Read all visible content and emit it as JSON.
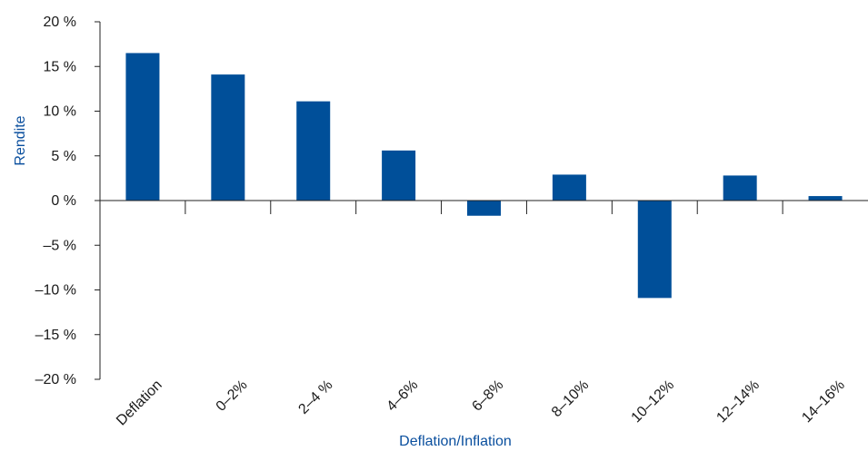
{
  "chart_data": {
    "type": "bar",
    "categories": [
      "Deflation",
      "0–2%",
      "2–4 %",
      "4–6%",
      "6–8%",
      "8–10%",
      "10–12%",
      "12–14%",
      "14–16%"
    ],
    "values": [
      16.5,
      14.1,
      11.1,
      5.6,
      -1.7,
      2.9,
      -10.9,
      2.8,
      0.5
    ],
    "xlabel": "Deflation/Inflation",
    "ylabel": "Rendite",
    "ylim": [
      -20,
      20
    ],
    "yticks": [
      20,
      15,
      10,
      5,
      0,
      -5,
      -10,
      -15,
      -20
    ],
    "ytick_labels": [
      "20 %",
      "15 %",
      "10 %",
      "5 %",
      "0 %",
      "–5 %",
      "–10 %",
      "–15 %",
      "–20 %"
    ],
    "bar_color": "#004f99",
    "grid": false
  }
}
